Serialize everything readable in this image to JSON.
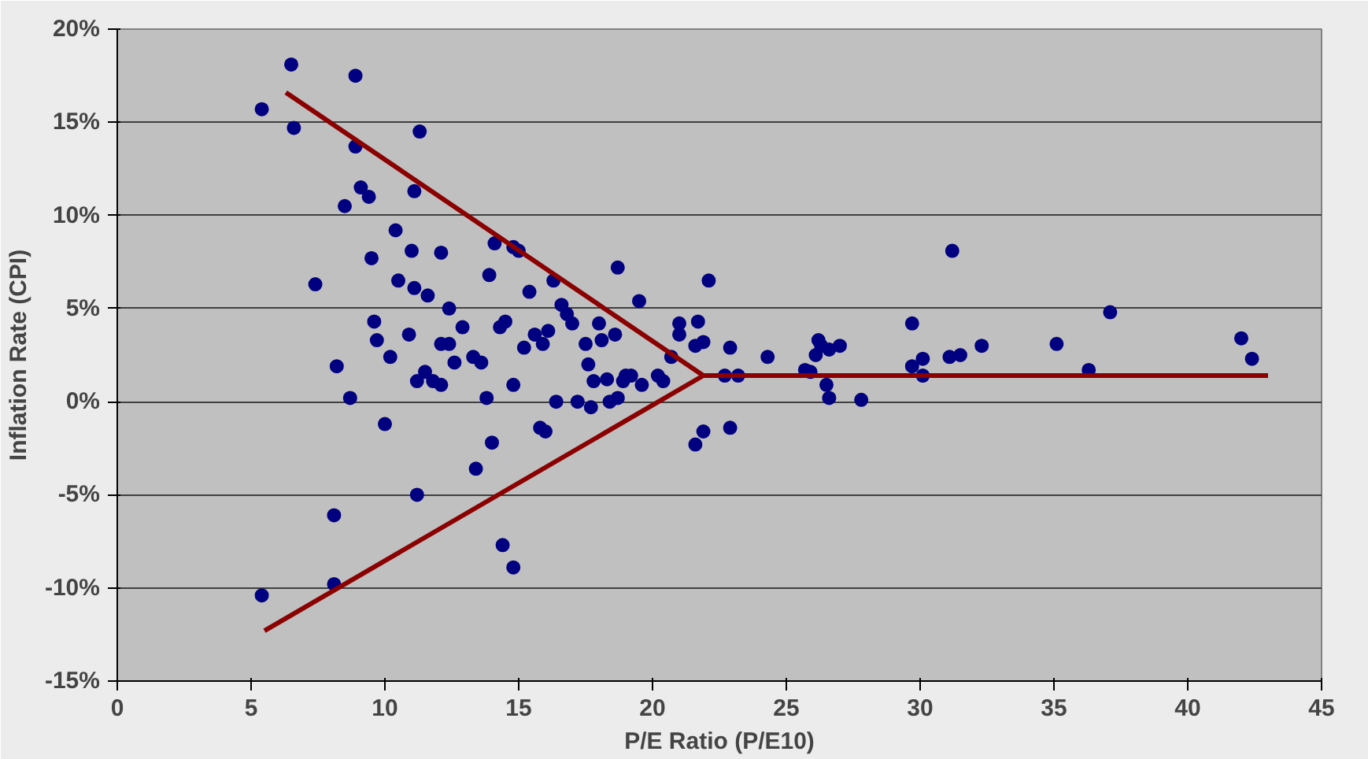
{
  "chart_data": {
    "type": "scatter",
    "xlabel": "P/E Ratio (P/E10)",
    "ylabel": "Inflation Rate (CPI)",
    "xlim": [
      0,
      45
    ],
    "xticks": [
      0,
      5,
      10,
      15,
      20,
      25,
      30,
      35,
      40,
      45
    ],
    "ylim": [
      -15,
      20
    ],
    "yticks": [
      {
        "value": -15,
        "label": "-15%"
      },
      {
        "value": -10,
        "label": "-10%"
      },
      {
        "value": -5,
        "label": "-5%"
      },
      {
        "value": 0,
        "label": "0%"
      },
      {
        "value": 5,
        "label": "5%"
      },
      {
        "value": 10,
        "label": "10%"
      },
      {
        "value": 15,
        "label": "15%"
      },
      {
        "value": 20,
        "label": "20%"
      }
    ],
    "grid": "y",
    "series": [
      {
        "marker": "circle",
        "color": "#000080",
        "x": [
          5.4,
          6.5,
          6.6,
          8.9,
          8.9,
          11.3,
          7.4,
          8.2,
          8.7,
          8.5,
          9.1,
          9.4,
          8.1,
          5.4,
          8.1,
          9.5,
          9.6,
          9.7,
          10.0,
          10.2,
          10.4,
          10.5,
          11.0,
          11.1,
          11.1,
          10.9,
          11.2,
          11.2,
          11.6,
          11.5,
          11.8,
          12.1,
          12.1,
          12.4,
          12.1,
          12.4,
          12.6,
          12.9,
          13.4,
          13.3,
          13.6,
          13.8,
          13.9,
          14.0,
          14.1,
          14.3,
          14.4,
          14.8,
          14.5,
          14.8,
          14.8,
          15.0,
          15.2,
          15.4,
          15.6,
          15.9,
          16.1,
          15.8,
          16.0,
          16.3,
          16.4,
          16.6,
          16.8,
          17.0,
          17.2,
          17.5,
          17.6,
          17.7,
          17.8,
          18.0,
          18.1,
          18.3,
          18.4,
          18.6,
          18.7,
          18.7,
          18.9,
          19.0,
          19.2,
          19.5,
          19.6,
          20.2,
          20.4,
          20.7,
          21.0,
          21.0,
          21.6,
          21.7,
          21.9,
          21.6,
          21.9,
          22.1,
          22.7,
          22.9,
          22.9,
          23.2,
          24.3,
          25.7,
          25.9,
          26.1,
          26.2,
          26.3,
          26.5,
          26.6,
          26.6,
          27.0,
          27.8,
          29.7,
          29.7,
          30.1,
          30.1,
          31.2,
          31.1,
          31.5,
          32.3,
          35.1,
          36.3,
          37.1,
          42.0,
          42.4
        ],
        "values": [
          15.7,
          18.1,
          14.7,
          17.5,
          13.7,
          14.5,
          6.3,
          1.9,
          0.2,
          10.5,
          11.5,
          11.0,
          -6.1,
          -10.4,
          -9.8,
          7.7,
          4.3,
          3.3,
          -1.2,
          2.4,
          9.2,
          6.5,
          8.1,
          11.3,
          6.1,
          3.6,
          -5.0,
          1.1,
          5.7,
          1.6,
          1.1,
          8.0,
          3.1,
          5.0,
          0.9,
          3.1,
          2.1,
          4.0,
          -3.6,
          2.4,
          2.1,
          0.2,
          6.8,
          -2.2,
          8.5,
          4.0,
          -7.7,
          8.3,
          4.3,
          0.9,
          -8.9,
          8.1,
          2.9,
          5.9,
          3.6,
          3.1,
          3.8,
          -1.4,
          -1.6,
          6.5,
          0.0,
          5.2,
          4.7,
          4.2,
          0.0,
          3.1,
          2.0,
          -0.3,
          1.1,
          4.2,
          3.3,
          1.2,
          0.0,
          3.6,
          7.2,
          0.2,
          1.1,
          1.4,
          1.4,
          5.4,
          0.9,
          1.4,
          1.1,
          2.4,
          4.2,
          3.6,
          3.0,
          4.3,
          3.2,
          -2.3,
          -1.6,
          6.5,
          1.4,
          2.9,
          -1.4,
          1.4,
          2.4,
          1.7,
          1.6,
          2.5,
          3.3,
          3.0,
          0.9,
          0.2,
          2.8,
          3.0,
          0.1,
          4.2,
          1.9,
          2.3,
          1.4,
          8.1,
          2.4,
          2.5,
          3.0,
          3.1,
          1.7,
          4.8,
          3.4,
          2.3
        ]
      },
      {
        "type": "line",
        "color": "#8b0000",
        "x": [
          6.3,
          21.9
        ],
        "values": [
          16.6,
          1.4
        ]
      },
      {
        "type": "line",
        "color": "#8b0000",
        "x": [
          5.5,
          21.9
        ],
        "values": [
          -12.3,
          1.4
        ]
      },
      {
        "type": "line",
        "color": "#8b0000",
        "x": [
          21.9,
          43.0
        ],
        "values": [
          1.4,
          1.4
        ]
      }
    ]
  }
}
